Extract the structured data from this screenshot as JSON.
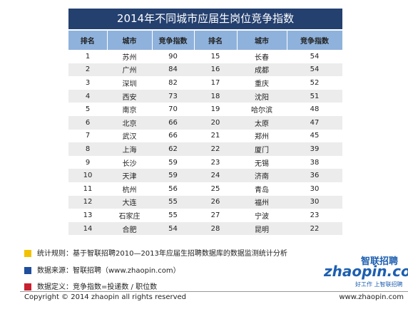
{
  "title": "2014年不同城市应届生岗位竞争指数",
  "table": {
    "headers": [
      "排名",
      "城市",
      "竞争指数",
      "排名",
      "城市",
      "竞争指数"
    ],
    "rows": [
      [
        1,
        "苏州",
        90,
        15,
        "长春",
        54
      ],
      [
        2,
        "广州",
        84,
        16,
        "成都",
        54
      ],
      [
        3,
        "深圳",
        82,
        17,
        "重庆",
        52
      ],
      [
        4,
        "西安",
        73,
        18,
        "沈阳",
        51
      ],
      [
        5,
        "南京",
        70,
        19,
        "哈尔滨",
        48
      ],
      [
        6,
        "北京",
        66,
        20,
        "太原",
        47
      ],
      [
        7,
        "武汉",
        66,
        21,
        "郑州",
        45
      ],
      [
        8,
        "上海",
        62,
        22,
        "厦门",
        39
      ],
      [
        9,
        "长沙",
        59,
        23,
        "无锡",
        38
      ],
      [
        10,
        "天津",
        59,
        24,
        "济南",
        36
      ],
      [
        11,
        "杭州",
        56,
        25,
        "青岛",
        30
      ],
      [
        12,
        "大连",
        55,
        26,
        "福州",
        30
      ],
      [
        13,
        "石家庄",
        55,
        27,
        "宁波",
        23
      ],
      [
        14,
        "合肥",
        54,
        28,
        "昆明",
        22
      ]
    ]
  },
  "notes": [
    {
      "color": "#f2c200",
      "text": "统计规则：基于智联招聘2010—2013年应届生招聘数据库的数据监测统计分析"
    },
    {
      "color": "#1f4e9c",
      "text": "数据来源：智联招聘（www.zhaopin.com）"
    },
    {
      "color": "#c8202f",
      "text": "数据定义：竞争指数=投递数 / 职位数"
    }
  ],
  "logo": {
    "brand": "智联招聘",
    "domain": "zhaopin.com",
    "slogan": "好工作 上智联招聘"
  },
  "footer": {
    "copyright": "Copyright  ©  2014 zhaopin all rights reserved",
    "site": "www.zhaopin.com"
  }
}
